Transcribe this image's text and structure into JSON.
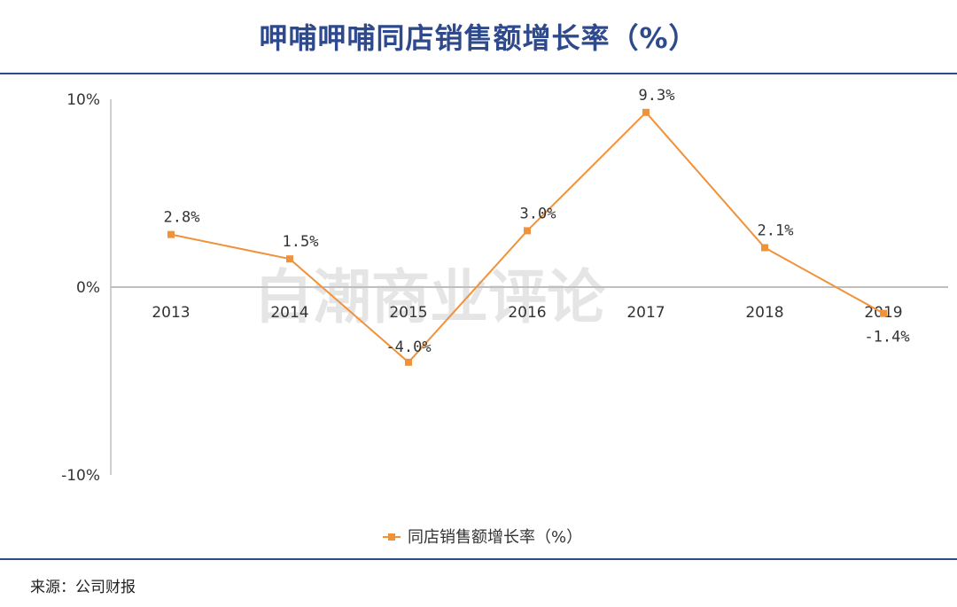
{
  "header": {
    "title": "呷哺呷哺同店销售额增长率（%）"
  },
  "footer": {
    "source": "来源：公司财报"
  },
  "watermark": {
    "text": "白潮商业评论"
  },
  "colors": {
    "title": "#2e4a8c",
    "series": "#f0923a",
    "axis": "#bfbfbf"
  },
  "chart_data": {
    "type": "line",
    "categories": [
      "2013",
      "2014",
      "2015",
      "2016",
      "2017",
      "2018",
      "2019"
    ],
    "series": [
      {
        "name": "同店销售额增长率（%）",
        "values": [
          2.8,
          1.5,
          -4.0,
          3.0,
          9.3,
          2.1,
          -1.4
        ],
        "labels": [
          "2.8%",
          "1.5%",
          "-4.0%",
          "3.0%",
          "9.3%",
          "2.1%",
          "-1.4%"
        ]
      }
    ],
    "ylim": [
      -10,
      10
    ],
    "yticks": [
      10,
      0,
      -10
    ],
    "ytick_labels": [
      "10%",
      "0%",
      "-10%"
    ],
    "legend_position": "bottom",
    "grid": false
  }
}
